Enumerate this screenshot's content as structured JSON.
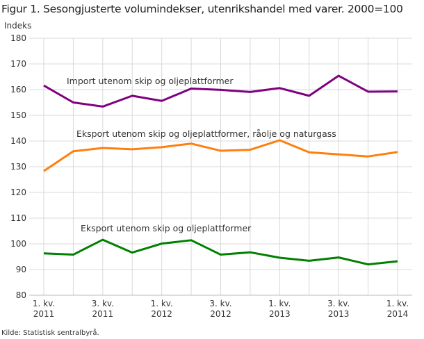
{
  "title": "Figur 1. Sesongjusterte volumindekser, utenrikshandel med varer. 2000=100",
  "source": "Kilde: Statistisk sentralbyrå.",
  "chart_data": {
    "type": "line",
    "title": "Figur 1. Sesongjusterte volumindekser, utenrikshandel med varer. 2000=100",
    "ylabel": "Indeks",
    "ylim": [
      80,
      180
    ],
    "yticks": [
      80,
      90,
      100,
      110,
      120,
      130,
      140,
      150,
      160,
      170,
      180
    ],
    "grid": true,
    "x": [
      "1. kv. 2011",
      "2. kv. 2011",
      "3. kv. 2011",
      "4. kv. 2011",
      "1. kv. 2012",
      "2. kv. 2012",
      "3. kv. 2012",
      "4. kv. 2012",
      "1. kv. 2013",
      "2. kv. 2013",
      "3. kv. 2013",
      "4. kv. 2013",
      "1. kv. 2014"
    ],
    "xtick_labels": [
      {
        "index": 0,
        "line1": "1. kv.",
        "line2": "2011"
      },
      {
        "index": 2,
        "line1": "3. kv.",
        "line2": "2011"
      },
      {
        "index": 4,
        "line1": "1. kv.",
        "line2": "2012"
      },
      {
        "index": 6,
        "line1": "3. kv.",
        "line2": "2012"
      },
      {
        "index": 8,
        "line1": "1. kv.",
        "line2": "2013"
      },
      {
        "index": 10,
        "line1": "3. kv.",
        "line2": "2013"
      },
      {
        "index": 12,
        "line1": "1. kv.",
        "line2": "2014"
      }
    ],
    "series": [
      {
        "name": "Import utenom skip og oljeplattformer",
        "color": "#800080",
        "values": [
          161.6,
          155.0,
          153.4,
          157.6,
          155.6,
          160.4,
          159.9,
          159.1,
          160.6,
          157.6,
          165.4,
          159.2,
          159.3
        ]
      },
      {
        "name": "Eksport utenom skip og oljeplattformer, råolje og naturgass",
        "color": "#ff7f0e",
        "values": [
          128.3,
          136.0,
          137.3,
          136.8,
          137.6,
          139.0,
          136.2,
          136.6,
          140.3,
          135.6,
          134.8,
          134.0,
          135.7
        ]
      },
      {
        "name": "Eksport utenom skip og oljeplattformer",
        "color": "#008000",
        "values": [
          96.3,
          95.8,
          101.6,
          96.6,
          100.1,
          101.4,
          95.8,
          96.7,
          94.6,
          93.4,
          94.7,
          92.0,
          93.2
        ]
      }
    ]
  }
}
